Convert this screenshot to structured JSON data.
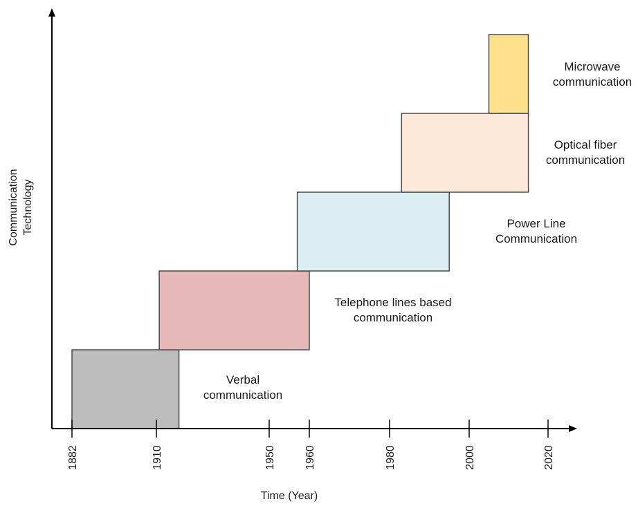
{
  "axes": {
    "x_title": "Time (Year)",
    "y_title_line1": "Communication",
    "y_title_line2": "Technology"
  },
  "chart_data": {
    "type": "timeline",
    "x_ticks": [
      "1882",
      "1910",
      "1950",
      "1960",
      "1980",
      "2000",
      "2020"
    ],
    "phases": [
      {
        "label_lines": [
          "Verbal",
          "communication"
        ],
        "start": 1882,
        "end": 1918,
        "color": "#bdbdbd"
      },
      {
        "label_lines": [
          "Telephone lines based",
          "communication"
        ],
        "start": 1911,
        "end": 1960,
        "color": "#e6b8b7"
      },
      {
        "label_lines": [
          "Power Line",
          "Communication"
        ],
        "start": 1957,
        "end": 1995,
        "color": "#dbeef3"
      },
      {
        "label_lines": [
          "Optical fiber",
          "communication"
        ],
        "start": 1983,
        "end": 2015,
        "color": "#fde9d9"
      },
      {
        "label_lines": [
          "Microwave",
          "communication"
        ],
        "start": 2005,
        "end": 2015,
        "color": "#ffe08c"
      }
    ]
  }
}
